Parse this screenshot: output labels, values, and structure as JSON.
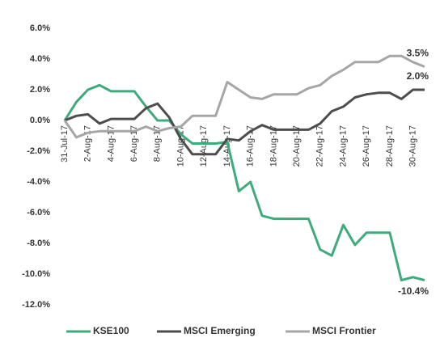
{
  "chart_data": {
    "type": "line",
    "categories": [
      "31-Jul-17",
      null,
      "2-Aug-17",
      null,
      "4-Aug-17",
      null,
      "6-Aug-17",
      null,
      "8-Aug-17",
      null,
      "10-Aug-17",
      null,
      "12-Aug-17",
      null,
      "14-Aug-17",
      null,
      "16-Aug-17",
      null,
      "18-Aug-17",
      null,
      "20-Aug-17",
      null,
      "22-Aug-17",
      null,
      "24-Aug-17",
      null,
      "26-Aug-17",
      null,
      "28-Aug-17",
      null,
      "30-Aug-17",
      null
    ],
    "series": [
      {
        "name": "KSE100",
        "color": "#3dab7c",
        "values": [
          0,
          1.2,
          2.0,
          2.3,
          1.9,
          1.9,
          1.9,
          0.9,
          0.0,
          0.0,
          -0.9,
          -1.5,
          -1.5,
          -1.5,
          -1.4,
          -4.6,
          -4.0,
          -6.2,
          -6.4,
          -6.4,
          -6.4,
          -6.4,
          -8.4,
          -8.8,
          -6.8,
          -8.1,
          -7.3,
          -7.3,
          -7.3,
          -10.4,
          -10.2,
          -10.4
        ],
        "value_labels": [
          null,
          null,
          null,
          null,
          null,
          null,
          null,
          null,
          null,
          null,
          null,
          null,
          null,
          null,
          null,
          null,
          null,
          null,
          null,
          null,
          null,
          null,
          null,
          null,
          null,
          null,
          null,
          null,
          null,
          null,
          null,
          "-10.4%"
        ]
      },
      {
        "name": "MSCI Emerging",
        "color": "#4d4d4d",
        "values": [
          0,
          0.3,
          0.4,
          -0.2,
          0.1,
          0.1,
          0.1,
          0.8,
          1.1,
          0.2,
          -1.2,
          -2.2,
          -2.2,
          -2.2,
          -1.2,
          -1.3,
          -0.7,
          -0.3,
          -0.6,
          -0.6,
          -0.6,
          -0.6,
          -0.2,
          0.6,
          0.9,
          1.5,
          1.7,
          1.8,
          1.8,
          1.4,
          2.0,
          2.0
        ],
        "value_labels": [
          null,
          null,
          null,
          null,
          null,
          null,
          null,
          null,
          null,
          null,
          null,
          null,
          null,
          null,
          null,
          null,
          null,
          null,
          null,
          null,
          null,
          null,
          null,
          null,
          null,
          null,
          null,
          null,
          null,
          null,
          null,
          "2.0%"
        ]
      },
      {
        "name": "MSCI Frontier",
        "color": "#a6a6a6",
        "values": [
          0,
          -1.1,
          -0.8,
          -0.7,
          -0.7,
          -0.7,
          -0.7,
          -0.4,
          -0.7,
          -0.5,
          -0.4,
          0.3,
          0.3,
          0.3,
          2.5,
          2.0,
          1.5,
          1.4,
          1.7,
          1.7,
          1.7,
          2.1,
          2.3,
          2.9,
          3.3,
          3.8,
          3.8,
          3.8,
          4.2,
          4.2,
          3.8,
          3.5
        ],
        "value_labels": [
          null,
          null,
          null,
          null,
          null,
          null,
          null,
          null,
          null,
          null,
          null,
          null,
          null,
          null,
          null,
          null,
          null,
          null,
          null,
          null,
          null,
          null,
          null,
          null,
          null,
          null,
          null,
          null,
          null,
          null,
          null,
          "3.5%"
        ]
      }
    ],
    "ylim": [
      -12,
      6
    ],
    "yticks": [
      {
        "value": 6,
        "label": "6.0%"
      },
      {
        "value": 4,
        "label": "4.0%"
      },
      {
        "value": 2,
        "label": "2.0%"
      },
      {
        "value": 0,
        "label": "0.0%"
      },
      {
        "value": -2,
        "label": "-2.0%"
      },
      {
        "value": -4,
        "label": "-4.0%"
      },
      {
        "value": -6,
        "label": "-6.0%"
      },
      {
        "value": -8,
        "label": "-8.0%"
      },
      {
        "value": -10,
        "label": "-10.0%"
      },
      {
        "value": -12,
        "label": "-12.0%"
      }
    ],
    "grid": false,
    "legend": "bottom"
  }
}
